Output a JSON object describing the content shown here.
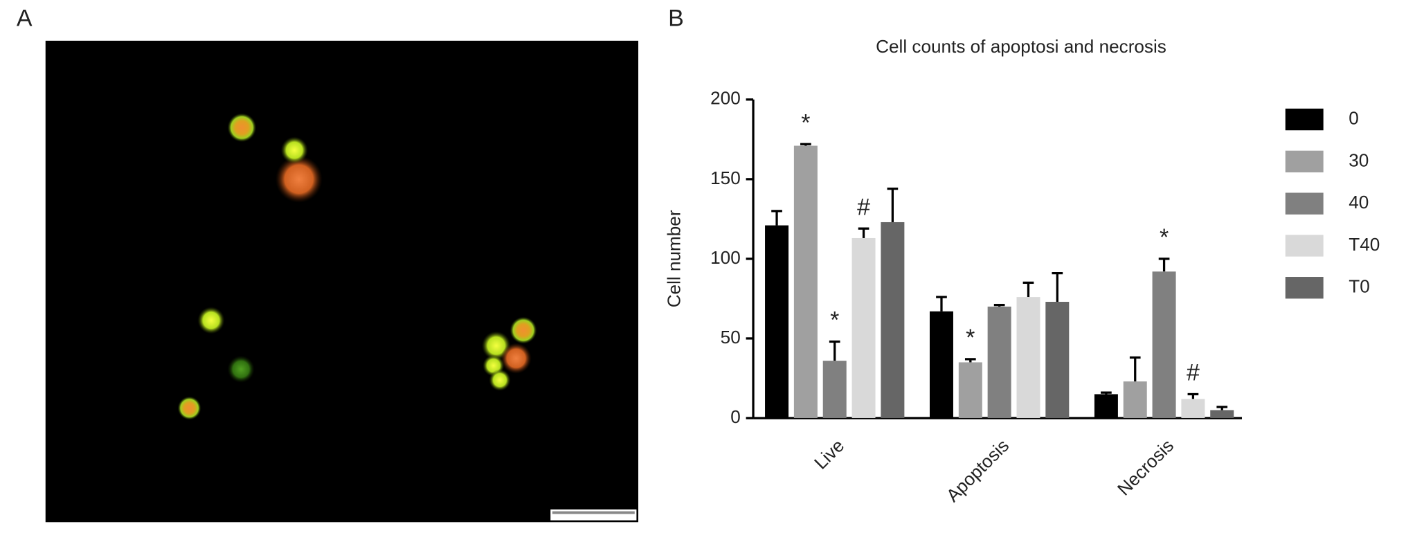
{
  "panels": [
    "A",
    "B"
  ],
  "chart_data": {
    "type": "bar",
    "title": "Cell counts of apoptosi and necrosis",
    "y_label": "Cell number",
    "categories": [
      "Live",
      "Apoptosis",
      "Necrosis"
    ],
    "series": [
      {
        "name": "0",
        "color": "#000000",
        "values": [
          121,
          67,
          15
        ],
        "errors": [
          9,
          9,
          1
        ]
      },
      {
        "name": "30",
        "color": "#a0a0a0",
        "values": [
          171,
          35,
          23
        ],
        "errors": [
          1,
          2,
          15
        ]
      },
      {
        "name": "40",
        "color": "#808080",
        "values": [
          36,
          70,
          92
        ],
        "errors": [
          12,
          1,
          8
        ]
      },
      {
        "name": "T40",
        "color": "#d9d9d9",
        "values": [
          113,
          76,
          12
        ],
        "errors": [
          6,
          9,
          3
        ]
      },
      {
        "name": "T0",
        "color": "#666666",
        "values": [
          123,
          73,
          5
        ],
        "errors": [
          21,
          18,
          2
        ]
      }
    ],
    "annotations": [
      {
        "text": "*",
        "category": 0,
        "series": 1
      },
      {
        "text": "*",
        "category": 0,
        "series": 2
      },
      {
        "text": "#",
        "category": 0,
        "series": 3
      },
      {
        "text": "*",
        "category": 1,
        "series": 1
      },
      {
        "text": "*",
        "category": 2,
        "series": 2
      },
      {
        "text": "#",
        "category": 2,
        "series": 3
      }
    ],
    "ylim": [
      0,
      200
    ],
    "yticks": [
      0,
      50,
      100,
      150,
      200
    ],
    "legend": "right"
  }
}
